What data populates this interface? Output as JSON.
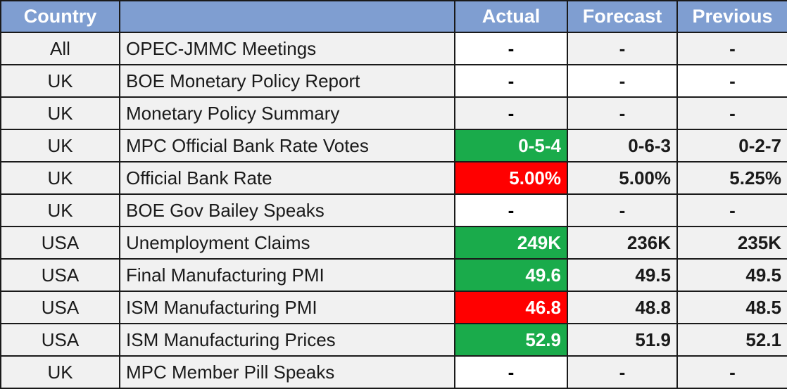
{
  "headers": {
    "country": "Country",
    "event": "",
    "actual": "Actual",
    "forecast": "Forecast",
    "previous": "Previous"
  },
  "colors": {
    "header_bg": "#7f9ed1",
    "better": "#1aab4b",
    "worse": "#ff0000"
  },
  "rows": [
    {
      "country": "All",
      "event": "OPEC-JMMC Meetings",
      "actual": "-",
      "forecast": "-",
      "previous": "-"
    },
    {
      "country": "UK",
      "event": "BOE Monetary Policy Report",
      "actual": "-",
      "forecast": "-",
      "previous": "-"
    },
    {
      "country": "UK",
      "event": "Monetary Policy Summary",
      "actual": "-",
      "forecast": "-",
      "previous": "-"
    },
    {
      "country": "UK",
      "event": "MPC Official Bank Rate Votes",
      "actual": "0-5-4",
      "forecast": "0-6-3",
      "previous": "0-2-7"
    },
    {
      "country": "UK",
      "event": "Official Bank Rate",
      "actual": "5.00%",
      "forecast": "5.00%",
      "previous": "5.25%"
    },
    {
      "country": "UK",
      "event": "BOE Gov Bailey Speaks",
      "actual": "-",
      "forecast": "-",
      "previous": "-"
    },
    {
      "country": "USA",
      "event": "Unemployment Claims",
      "actual": "249K",
      "forecast": "236K",
      "previous": "235K"
    },
    {
      "country": "USA",
      "event": "Final Manufacturing PMI",
      "actual": "49.6",
      "forecast": "49.5",
      "previous": "49.5"
    },
    {
      "country": "USA",
      "event": "ISM Manufacturing PMI",
      "actual": "46.8",
      "forecast": "48.8",
      "previous": "48.5"
    },
    {
      "country": "USA",
      "event": "ISM Manufacturing Prices",
      "actual": "52.9",
      "forecast": "51.9",
      "previous": "52.1"
    },
    {
      "country": "UK",
      "event": "MPC Member Pill Speaks",
      "actual": "-",
      "forecast": "-",
      "previous": "-"
    }
  ]
}
